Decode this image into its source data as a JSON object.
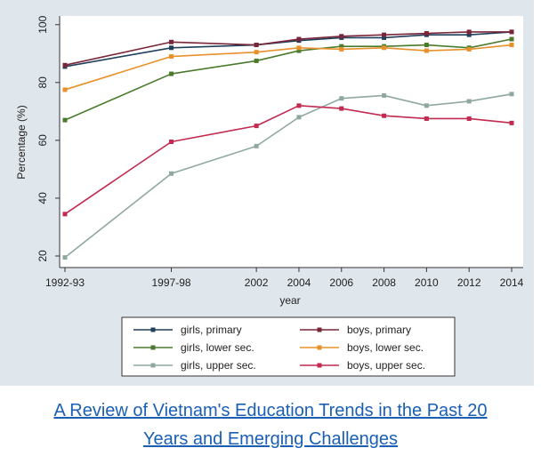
{
  "chart_data": {
    "type": "line",
    "title": "",
    "xlabel": "year",
    "ylabel": "Percentage (%)",
    "x_tick_labels": [
      "1992-93",
      "1997-98",
      "2002",
      "2004",
      "2006",
      "2008",
      "2010",
      "2012",
      "2014"
    ],
    "x_numeric": [
      1993,
      1998,
      2002,
      2004,
      2006,
      2008,
      2010,
      2012,
      2014
    ],
    "ylim": [
      20,
      100
    ],
    "yticks": [
      20,
      40,
      60,
      80,
      100
    ],
    "grid": false,
    "legend_position": "bottom",
    "series": [
      {
        "name": "girls, primary",
        "color": "#1f3f5c",
        "values": [
          85.5,
          92,
          93,
          94.5,
          95.5,
          95.5,
          96.5,
          96.5,
          97.5
        ]
      },
      {
        "name": "boys, primary",
        "color": "#7a2538",
        "values": [
          86,
          94,
          93,
          95,
          96,
          96.5,
          97,
          97.5,
          97.5
        ]
      },
      {
        "name": "girls, lower sec.",
        "color": "#4a7a2c",
        "values": [
          67,
          83,
          87.5,
          91,
          92.5,
          92.5,
          93,
          92,
          95
        ]
      },
      {
        "name": "boys, lower sec.",
        "color": "#e8902a",
        "values": [
          77.5,
          89,
          90.5,
          92,
          91.5,
          92,
          91,
          91.5,
          93
        ]
      },
      {
        "name": "girls, upper sec.",
        "color": "#8fa89e",
        "values": [
          19.5,
          48.5,
          58,
          68,
          74.5,
          75.5,
          72,
          73.5,
          76
        ]
      },
      {
        "name": "boys, upper sec.",
        "color": "#c22a50",
        "values": [
          34.5,
          59.5,
          65,
          72,
          71,
          68.5,
          67.5,
          67.5,
          66
        ]
      }
    ]
  },
  "caption": {
    "line1": "A Review of Vietnam's Education Trends in the Past 20",
    "line2": "Years and Emerging Challenges"
  }
}
